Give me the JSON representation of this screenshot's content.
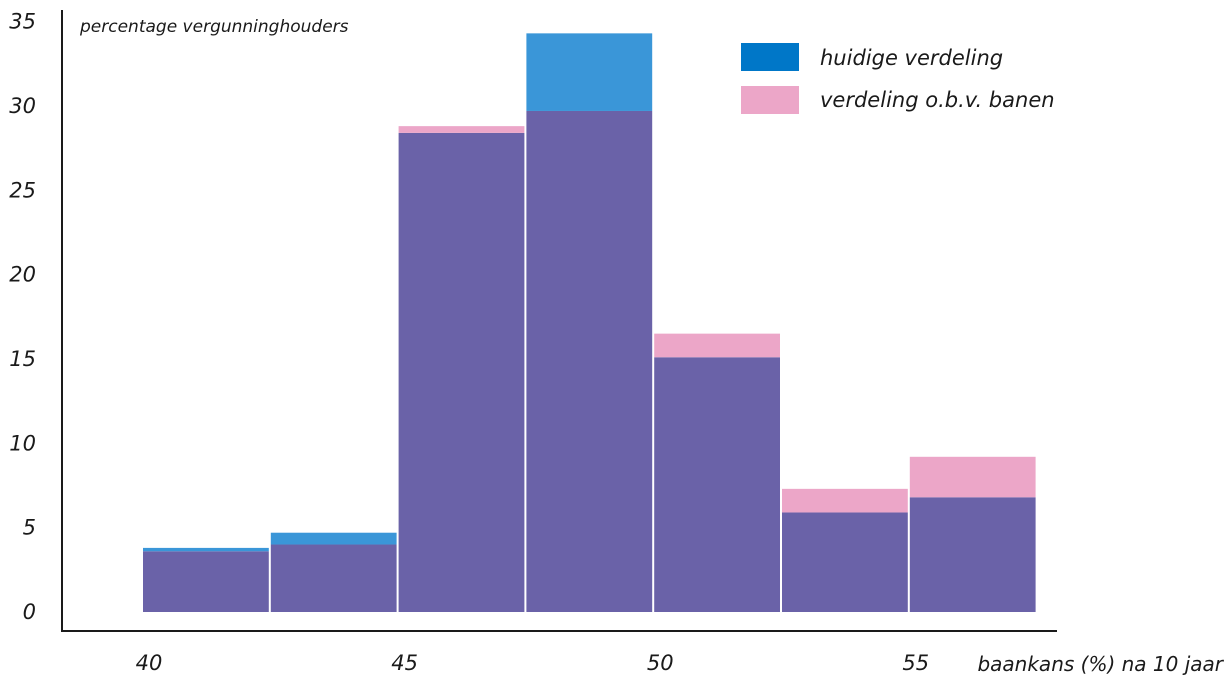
{
  "chart_data": {
    "type": "bar",
    "title": "",
    "ylabel": "percentage vergunninghouders",
    "xlabel": "baankans (%) na 10 jaar",
    "ylim": [
      0,
      35
    ],
    "xlim": [
      40,
      57.5
    ],
    "y_ticks": [
      "0",
      "5",
      "10",
      "15",
      "20",
      "25",
      "30",
      "35"
    ],
    "x_ticks": [
      "40",
      "45",
      "50",
      "55"
    ],
    "x_tick_values": [
      40,
      45,
      50,
      55
    ],
    "bin_edges": [
      40,
      42.5,
      45,
      47.5,
      50,
      52.5,
      55,
      57.5
    ],
    "series": [
      {
        "name": "huidige verdeling",
        "color": "#0077c8",
        "values": [
          3.8,
          4.7,
          28.4,
          34.3,
          15.1,
          5.9,
          6.8
        ]
      },
      {
        "name": "verdeling o.b.v. banen",
        "color": "#eca6c8",
        "values": [
          3.6,
          4.0,
          28.8,
          29.7,
          16.5,
          7.3,
          9.2
        ]
      }
    ],
    "overlap_color": "#6a62a8",
    "legend_position": "top-right",
    "grid": false
  }
}
